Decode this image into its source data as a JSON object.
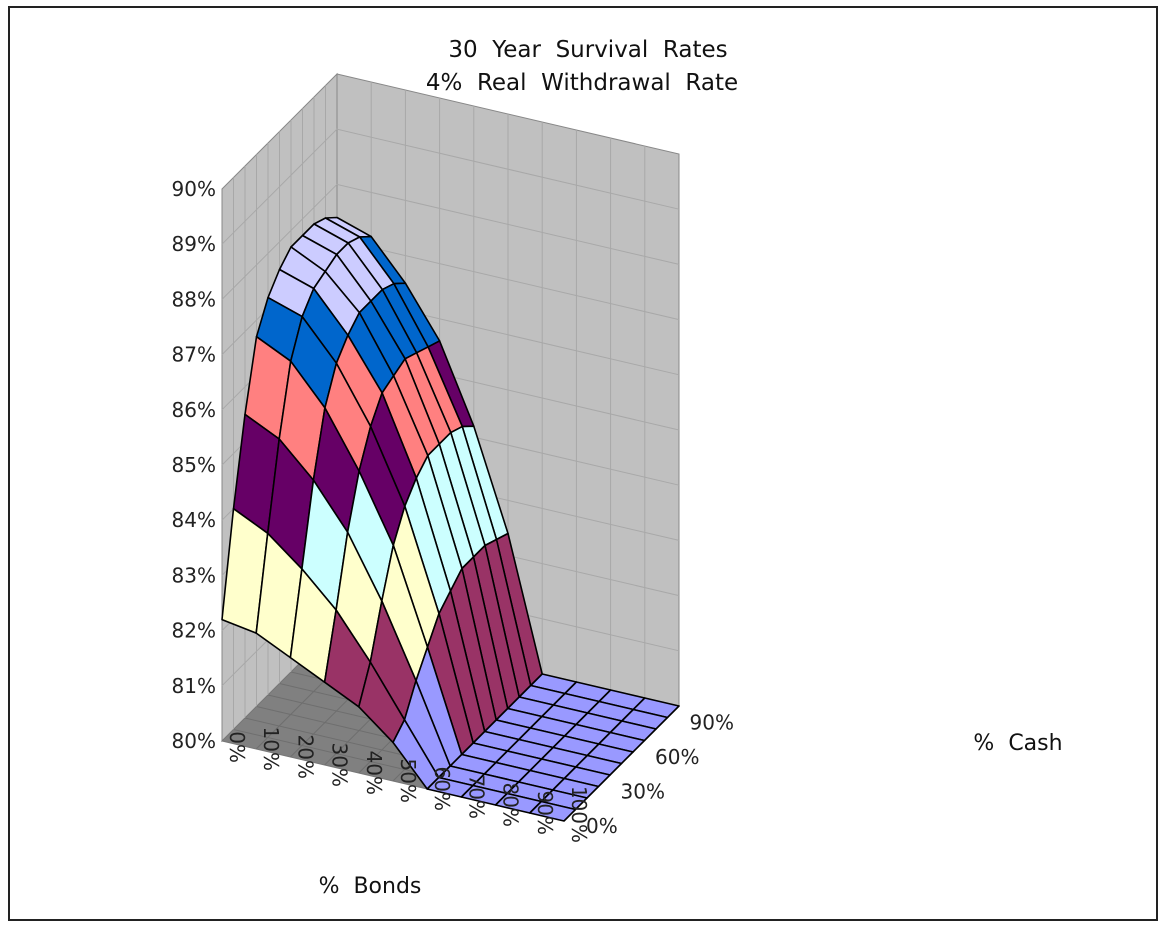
{
  "chart_data": {
    "type": "surface",
    "title_lines": [
      "30  Year  Survival  Rates",
      "4%  Real  Withdrawal  Rate"
    ],
    "xlabel": "%  Bonds",
    "ylabel": "%  Cash",
    "zlim": [
      0.8,
      0.9
    ],
    "z_ticks": [
      "80%",
      "81%",
      "82%",
      "83%",
      "84%",
      "85%",
      "86%",
      "87%",
      "88%",
      "89%",
      "90%"
    ],
    "x_ticks": [
      "0%",
      "10%",
      "20%",
      "30%",
      "40%",
      "50%",
      "60%",
      "70%",
      "80%",
      "90%",
      "100%"
    ],
    "y_ticks": [
      "0%",
      "30%",
      "60%",
      "90%"
    ],
    "x": [
      0,
      10,
      20,
      30,
      40,
      50,
      60,
      70,
      80,
      90,
      100
    ],
    "y": [
      0,
      10,
      20,
      30,
      40,
      50,
      60,
      70,
      80,
      90,
      100
    ],
    "series": [
      {
        "values": [
          0.822,
          0.821,
          0.818,
          0.815,
          0.812,
          0.807,
          0.8,
          0.8,
          0.8,
          0.8,
          0.8
        ]
      },
      {
        "values": [
          0.84,
          0.837,
          0.832,
          0.826,
          0.818,
          0.809,
          0.8,
          0.8,
          0.8,
          0.8,
          0.8
        ]
      },
      {
        "values": [
          0.855,
          0.852,
          0.846,
          0.838,
          0.827,
          0.814,
          0.8,
          0.8,
          0.8,
          0.8,
          0.8
        ]
      },
      {
        "values": [
          0.867,
          0.864,
          0.857,
          0.847,
          0.835,
          0.818,
          0.8,
          0.8,
          0.8,
          0.8,
          0.8
        ]
      },
      {
        "values": [
          0.872,
          0.87,
          0.863,
          0.853,
          0.84,
          0.822,
          0.8,
          0.8,
          0.8,
          0.8,
          0.8
        ]
      },
      {
        "values": [
          0.875,
          0.873,
          0.866,
          0.857,
          0.843,
          0.824,
          0.8,
          0.8,
          0.8,
          0.8,
          0.8
        ]
      },
      {
        "values": [
          0.877,
          0.874,
          0.868,
          0.858,
          0.845,
          0.826,
          0.8,
          0.8,
          0.8,
          0.8,
          0.8
        ]
      },
      {
        "values": [
          0.877,
          0.875,
          0.868,
          0.859,
          0.845,
          0.826,
          0.8,
          0.8,
          0.8,
          0.8,
          0.8
        ]
      },
      {
        "values": [
          0.877,
          0.875,
          0.868,
          0.858,
          0.845,
          0.826,
          0.8,
          0.8,
          0.8,
          0.8,
          0.8
        ]
      },
      {
        "values": [
          0.876,
          0.874,
          0.867,
          0.857,
          0.844,
          0.825,
          0.8,
          0.8,
          0.8,
          0.8,
          0.8
        ]
      },
      {
        "values": [
          0.874,
          0.872,
          0.865,
          0.856,
          0.842,
          0.824,
          0.8,
          0.8,
          0.8,
          0.8,
          0.8
        ]
      }
    ],
    "band_colors": [
      "#9999ff",
      "#993366",
      "#ffffcc",
      "#ccffff",
      "#660066",
      "#ff8080",
      "#0066cc",
      "#ccccff",
      "#000080"
    ],
    "colors": {
      "wall": "#c0c0c0",
      "floor": "#808080",
      "grid": "#a8a8a8",
      "mesh": "#000000"
    }
  }
}
